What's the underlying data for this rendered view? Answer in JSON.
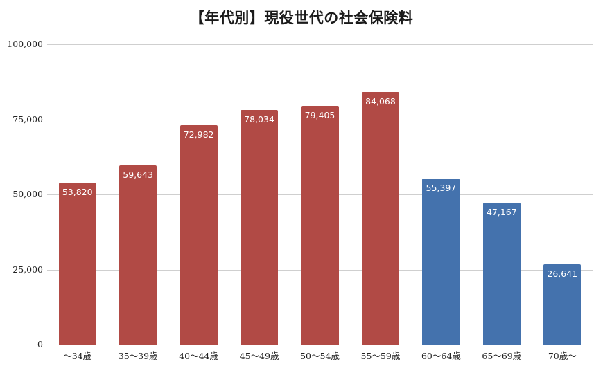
{
  "chart_data": {
    "type": "bar",
    "title": "【年代別】現役世代の社会保険料",
    "xlabel": "",
    "ylabel": "",
    "categories": [
      "〜34歳",
      "35〜39歳",
      "40〜44歳",
      "45〜49歳",
      "50〜54歳",
      "55〜59歳",
      "60〜64歳",
      "65〜69歳",
      "70歳〜"
    ],
    "values": [
      53820,
      59643,
      72982,
      78034,
      79405,
      84068,
      55397,
      47167,
      26641
    ],
    "value_labels": [
      "53,820",
      "59,643",
      "72,982",
      "78,034",
      "79,405",
      "84,068",
      "55,397",
      "47,167",
      "26,641"
    ],
    "bar_colors": [
      "#b14a45",
      "#b14a45",
      "#b14a45",
      "#b14a45",
      "#b14a45",
      "#b14a45",
      "#4472ad",
      "#4472ad",
      "#4472ad"
    ],
    "ylim": [
      0,
      100000
    ],
    "yticks": [
      0,
      25000,
      50000,
      75000,
      100000
    ],
    "ytick_labels": [
      "0",
      "25,000",
      "50,000",
      "75,000",
      "100,000"
    ],
    "grid": true,
    "legend": null
  },
  "colors": {
    "red_series": "#b14a45",
    "blue_series": "#4472ad",
    "grid": "#cfcfcf"
  }
}
